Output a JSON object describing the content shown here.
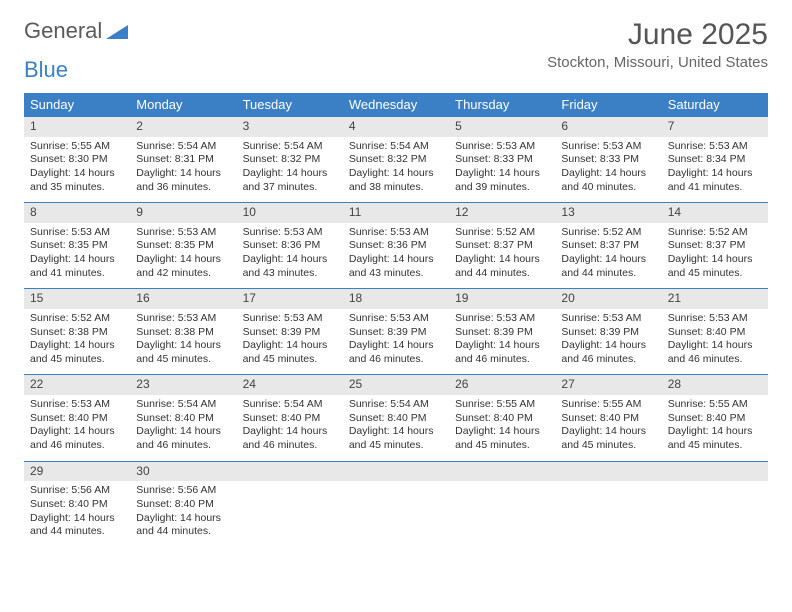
{
  "brand": {
    "word1": "General",
    "word2": "Blue"
  },
  "title": "June 2025",
  "location": "Stockton, Missouri, United States",
  "colors": {
    "header_bg": "#3b7fc4",
    "header_text": "#ffffff",
    "daynum_bg": "#e8e8e8",
    "border": "#3b7fc4",
    "logo_gray": "#5a5a5a",
    "logo_blue": "#3b7fc4"
  },
  "day_labels": [
    "Sunday",
    "Monday",
    "Tuesday",
    "Wednesday",
    "Thursday",
    "Friday",
    "Saturday"
  ],
  "weeks": [
    [
      {
        "n": "1",
        "sr": "Sunrise: 5:55 AM",
        "ss": "Sunset: 8:30 PM",
        "d1": "Daylight: 14 hours",
        "d2": "and 35 minutes."
      },
      {
        "n": "2",
        "sr": "Sunrise: 5:54 AM",
        "ss": "Sunset: 8:31 PM",
        "d1": "Daylight: 14 hours",
        "d2": "and 36 minutes."
      },
      {
        "n": "3",
        "sr": "Sunrise: 5:54 AM",
        "ss": "Sunset: 8:32 PM",
        "d1": "Daylight: 14 hours",
        "d2": "and 37 minutes."
      },
      {
        "n": "4",
        "sr": "Sunrise: 5:54 AM",
        "ss": "Sunset: 8:32 PM",
        "d1": "Daylight: 14 hours",
        "d2": "and 38 minutes."
      },
      {
        "n": "5",
        "sr": "Sunrise: 5:53 AM",
        "ss": "Sunset: 8:33 PM",
        "d1": "Daylight: 14 hours",
        "d2": "and 39 minutes."
      },
      {
        "n": "6",
        "sr": "Sunrise: 5:53 AM",
        "ss": "Sunset: 8:33 PM",
        "d1": "Daylight: 14 hours",
        "d2": "and 40 minutes."
      },
      {
        "n": "7",
        "sr": "Sunrise: 5:53 AM",
        "ss": "Sunset: 8:34 PM",
        "d1": "Daylight: 14 hours",
        "d2": "and 41 minutes."
      }
    ],
    [
      {
        "n": "8",
        "sr": "Sunrise: 5:53 AM",
        "ss": "Sunset: 8:35 PM",
        "d1": "Daylight: 14 hours",
        "d2": "and 41 minutes."
      },
      {
        "n": "9",
        "sr": "Sunrise: 5:53 AM",
        "ss": "Sunset: 8:35 PM",
        "d1": "Daylight: 14 hours",
        "d2": "and 42 minutes."
      },
      {
        "n": "10",
        "sr": "Sunrise: 5:53 AM",
        "ss": "Sunset: 8:36 PM",
        "d1": "Daylight: 14 hours",
        "d2": "and 43 minutes."
      },
      {
        "n": "11",
        "sr": "Sunrise: 5:53 AM",
        "ss": "Sunset: 8:36 PM",
        "d1": "Daylight: 14 hours",
        "d2": "and 43 minutes."
      },
      {
        "n": "12",
        "sr": "Sunrise: 5:52 AM",
        "ss": "Sunset: 8:37 PM",
        "d1": "Daylight: 14 hours",
        "d2": "and 44 minutes."
      },
      {
        "n": "13",
        "sr": "Sunrise: 5:52 AM",
        "ss": "Sunset: 8:37 PM",
        "d1": "Daylight: 14 hours",
        "d2": "and 44 minutes."
      },
      {
        "n": "14",
        "sr": "Sunrise: 5:52 AM",
        "ss": "Sunset: 8:37 PM",
        "d1": "Daylight: 14 hours",
        "d2": "and 45 minutes."
      }
    ],
    [
      {
        "n": "15",
        "sr": "Sunrise: 5:52 AM",
        "ss": "Sunset: 8:38 PM",
        "d1": "Daylight: 14 hours",
        "d2": "and 45 minutes."
      },
      {
        "n": "16",
        "sr": "Sunrise: 5:53 AM",
        "ss": "Sunset: 8:38 PM",
        "d1": "Daylight: 14 hours",
        "d2": "and 45 minutes."
      },
      {
        "n": "17",
        "sr": "Sunrise: 5:53 AM",
        "ss": "Sunset: 8:39 PM",
        "d1": "Daylight: 14 hours",
        "d2": "and 45 minutes."
      },
      {
        "n": "18",
        "sr": "Sunrise: 5:53 AM",
        "ss": "Sunset: 8:39 PM",
        "d1": "Daylight: 14 hours",
        "d2": "and 46 minutes."
      },
      {
        "n": "19",
        "sr": "Sunrise: 5:53 AM",
        "ss": "Sunset: 8:39 PM",
        "d1": "Daylight: 14 hours",
        "d2": "and 46 minutes."
      },
      {
        "n": "20",
        "sr": "Sunrise: 5:53 AM",
        "ss": "Sunset: 8:39 PM",
        "d1": "Daylight: 14 hours",
        "d2": "and 46 minutes."
      },
      {
        "n": "21",
        "sr": "Sunrise: 5:53 AM",
        "ss": "Sunset: 8:40 PM",
        "d1": "Daylight: 14 hours",
        "d2": "and 46 minutes."
      }
    ],
    [
      {
        "n": "22",
        "sr": "Sunrise: 5:53 AM",
        "ss": "Sunset: 8:40 PM",
        "d1": "Daylight: 14 hours",
        "d2": "and 46 minutes."
      },
      {
        "n": "23",
        "sr": "Sunrise: 5:54 AM",
        "ss": "Sunset: 8:40 PM",
        "d1": "Daylight: 14 hours",
        "d2": "and 46 minutes."
      },
      {
        "n": "24",
        "sr": "Sunrise: 5:54 AM",
        "ss": "Sunset: 8:40 PM",
        "d1": "Daylight: 14 hours",
        "d2": "and 46 minutes."
      },
      {
        "n": "25",
        "sr": "Sunrise: 5:54 AM",
        "ss": "Sunset: 8:40 PM",
        "d1": "Daylight: 14 hours",
        "d2": "and 45 minutes."
      },
      {
        "n": "26",
        "sr": "Sunrise: 5:55 AM",
        "ss": "Sunset: 8:40 PM",
        "d1": "Daylight: 14 hours",
        "d2": "and 45 minutes."
      },
      {
        "n": "27",
        "sr": "Sunrise: 5:55 AM",
        "ss": "Sunset: 8:40 PM",
        "d1": "Daylight: 14 hours",
        "d2": "and 45 minutes."
      },
      {
        "n": "28",
        "sr": "Sunrise: 5:55 AM",
        "ss": "Sunset: 8:40 PM",
        "d1": "Daylight: 14 hours",
        "d2": "and 45 minutes."
      }
    ],
    [
      {
        "n": "29",
        "sr": "Sunrise: 5:56 AM",
        "ss": "Sunset: 8:40 PM",
        "d1": "Daylight: 14 hours",
        "d2": "and 44 minutes."
      },
      {
        "n": "30",
        "sr": "Sunrise: 5:56 AM",
        "ss": "Sunset: 8:40 PM",
        "d1": "Daylight: 14 hours",
        "d2": "and 44 minutes."
      },
      {
        "n": "",
        "sr": "",
        "ss": "",
        "d1": "",
        "d2": ""
      },
      {
        "n": "",
        "sr": "",
        "ss": "",
        "d1": "",
        "d2": ""
      },
      {
        "n": "",
        "sr": "",
        "ss": "",
        "d1": "",
        "d2": ""
      },
      {
        "n": "",
        "sr": "",
        "ss": "",
        "d1": "",
        "d2": ""
      },
      {
        "n": "",
        "sr": "",
        "ss": "",
        "d1": "",
        "d2": ""
      }
    ]
  ]
}
